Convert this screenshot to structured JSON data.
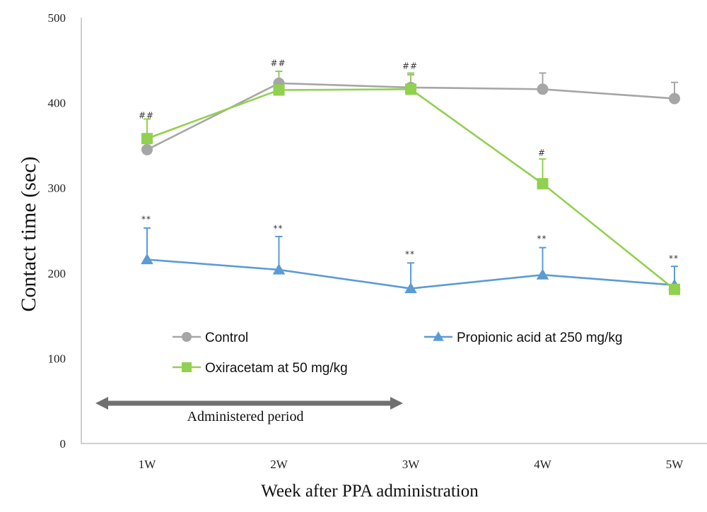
{
  "chart_data": {
    "type": "line",
    "xlabel": "Week after PPA administration",
    "ylabel": "Contact time (sec)",
    "categories": [
      "1W",
      "2W",
      "3W",
      "4W",
      "5W"
    ],
    "ylim": [
      0,
      500
    ],
    "yticks": [
      0,
      100,
      200,
      300,
      400,
      500
    ],
    "grid": false,
    "series": [
      {
        "name": "Control",
        "color": "#a6a6a6",
        "marker": "circle",
        "values": [
          345,
          423,
          418,
          416,
          405
        ],
        "errors": [
          0,
          14,
          15,
          19,
          19
        ]
      },
      {
        "name": "Propionic acid at 250 mg/kg",
        "color": "#5b9bd5",
        "marker": "triangle",
        "values": [
          216,
          204,
          182,
          198,
          186
        ],
        "errors": [
          37,
          39,
          30,
          32,
          22
        ]
      },
      {
        "name": "Oxiracetam at 50 mg/kg",
        "color": "#92d050",
        "marker": "square",
        "values": [
          358,
          415,
          416,
          305,
          181
        ],
        "errors": [
          23,
          22,
          19,
          29,
          0
        ]
      }
    ],
    "annotations": [
      {
        "category": "1W",
        "text": "##",
        "y": 382
      },
      {
        "category": "2W",
        "text": "##",
        "y": 443
      },
      {
        "category": "3W",
        "text": "##",
        "y": 440
      },
      {
        "category": "4W",
        "text": "#",
        "y": 338
      },
      {
        "category": "1W",
        "text": "**",
        "y": 260
      },
      {
        "category": "2W",
        "text": "**",
        "y": 249
      },
      {
        "category": "3W",
        "text": "**",
        "y": 219
      },
      {
        "category": "4W",
        "text": "**",
        "y": 237
      },
      {
        "category": "5W",
        "text": "**",
        "y": 214
      }
    ],
    "legend": {
      "placement": "inside-lower",
      "entries": [
        "Control",
        "Propionic acid at 250 mg/kg",
        "Oxiracetam at 50 mg/kg"
      ]
    },
    "period": {
      "label": "Administered period",
      "from_week": 1,
      "to_week": 3,
      "color": "#707070"
    }
  }
}
